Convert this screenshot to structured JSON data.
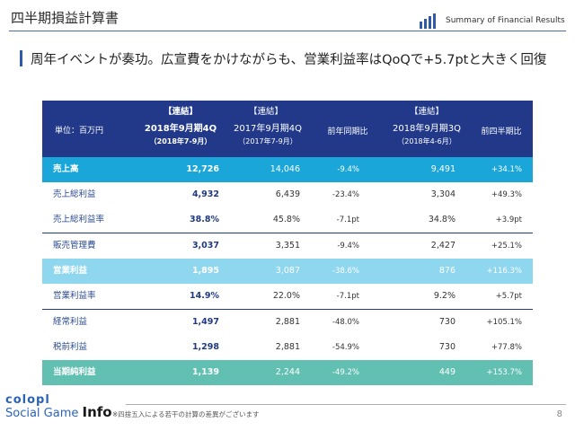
{
  "header": {
    "title": "四半期損益計算書",
    "brand_label": "Summary of Financial Results"
  },
  "headline": "周年イベントが奏功。広宣費をかけながらも、営業利益率はQoQで+5.7ptと大きく回復",
  "table": {
    "unit_label": "単位：百万円",
    "columns": [
      {
        "tag": "【連結】",
        "name": "2018年9月期4Q",
        "period": "（2018年7-9月）"
      },
      {
        "tag": "【連結】",
        "name": "2017年9月期4Q",
        "period": "（2017年7-9月）"
      },
      {
        "name": "前年同期比"
      },
      {
        "tag": "【連結】",
        "name": "2018年9月期3Q",
        "period": "（2018年4-6月）"
      },
      {
        "name": "前四半期比"
      }
    ],
    "rows": [
      {
        "label": "売上高",
        "v1": "12,726",
        "v2": "14,046",
        "yoy": "-9.4%",
        "v3": "9,491",
        "qoq": "+34.1%"
      },
      {
        "label": "売上総利益",
        "v1": "4,932",
        "v2": "6,439",
        "yoy": "-23.4%",
        "v3": "3,304",
        "qoq": "+49.3%"
      },
      {
        "label": "売上総利益率",
        "v1": "38.8%",
        "v2": "45.8%",
        "yoy": "-7.1pt",
        "v3": "34.8%",
        "qoq": "+3.9pt"
      },
      {
        "label": "販売管理費",
        "v1": "3,037",
        "v2": "3,351",
        "yoy": "-9.4%",
        "v3": "2,427",
        "qoq": "+25.1%"
      },
      {
        "label": "営業利益",
        "v1": "1,895",
        "v2": "3,087",
        "yoy": "-38.6%",
        "v3": "876",
        "qoq": "+116.3%"
      },
      {
        "label": "営業利益率",
        "v1": "14.9%",
        "v2": "22.0%",
        "yoy": "-7.1pt",
        "v3": "9.2%",
        "qoq": "+5.7pt"
      },
      {
        "label": "経常利益",
        "v1": "1,497",
        "v2": "2,881",
        "yoy": "-48.0%",
        "v3": "730",
        "qoq": "+105.1%"
      },
      {
        "label": "税前利益",
        "v1": "1,298",
        "v2": "2,881",
        "yoy": "-54.9%",
        "v3": "730",
        "qoq": "+77.8%"
      },
      {
        "label": "当期純利益",
        "v1": "1,139",
        "v2": "2,244",
        "yoy": "-49.2%",
        "v3": "449",
        "qoq": "+153.7%"
      }
    ]
  },
  "footer": {
    "logo_top": "colopl",
    "logo_bottom_prefix": "Social Game ",
    "logo_bottom_bold": "Info",
    "footnote": "※四捨五入による若干の計算の差異がございます",
    "page_number": "8"
  },
  "colors": {
    "header_blue": "#22398a",
    "highlight_strong": "#1aa6d8",
    "highlight_light": "#8fd6ef",
    "highlight_teal": "#62c0b2"
  }
}
